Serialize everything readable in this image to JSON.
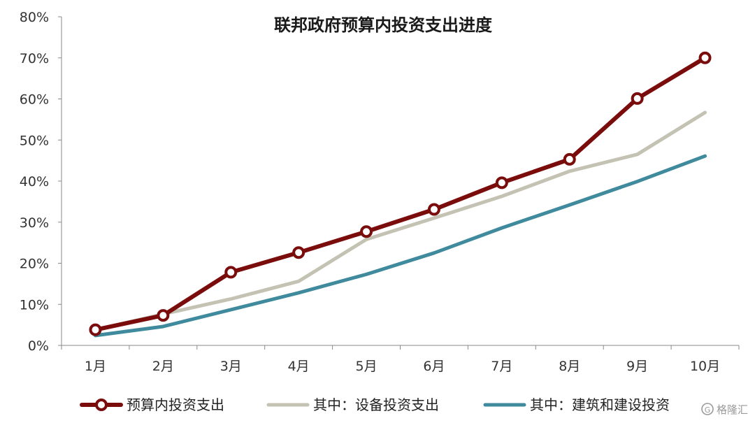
{
  "chart_data": {
    "type": "line",
    "title": "联邦政府预算内投资支出进度",
    "xlabel": "",
    "ylabel": "",
    "categories": [
      "1月",
      "2月",
      "3月",
      "4月",
      "5月",
      "6月",
      "7月",
      "8月",
      "9月",
      "10月"
    ],
    "ylim": [
      0,
      80
    ],
    "yticks": [
      "0%",
      "10%",
      "20%",
      "30%",
      "40%",
      "50%",
      "60%",
      "70%",
      "80%"
    ],
    "y_unit": "%",
    "grid": false,
    "legend_position": "bottom",
    "series": [
      {
        "name": "预算内投资支出",
        "color": "#7a0c0c",
        "marker": "circle",
        "values": [
          3.8,
          7.3,
          17.8,
          22.6,
          27.7,
          33.1,
          39.6,
          45.3,
          60.1,
          70.0
        ]
      },
      {
        "name": "其中：设备投资支出",
        "color": "#c4c2b2",
        "marker": "none",
        "values": [
          3.8,
          7.6,
          11.3,
          15.6,
          25.8,
          31.0,
          36.3,
          42.4,
          46.5,
          56.7
        ]
      },
      {
        "name": "其中：建筑和建设投资",
        "color": "#3f8a9c",
        "marker": "none",
        "values": [
          2.4,
          4.6,
          8.7,
          12.8,
          17.3,
          22.5,
          28.6,
          34.2,
          39.9,
          46.1
        ]
      }
    ]
  },
  "watermark": {
    "text": "格隆汇",
    "icon": "g-logo-icon"
  }
}
